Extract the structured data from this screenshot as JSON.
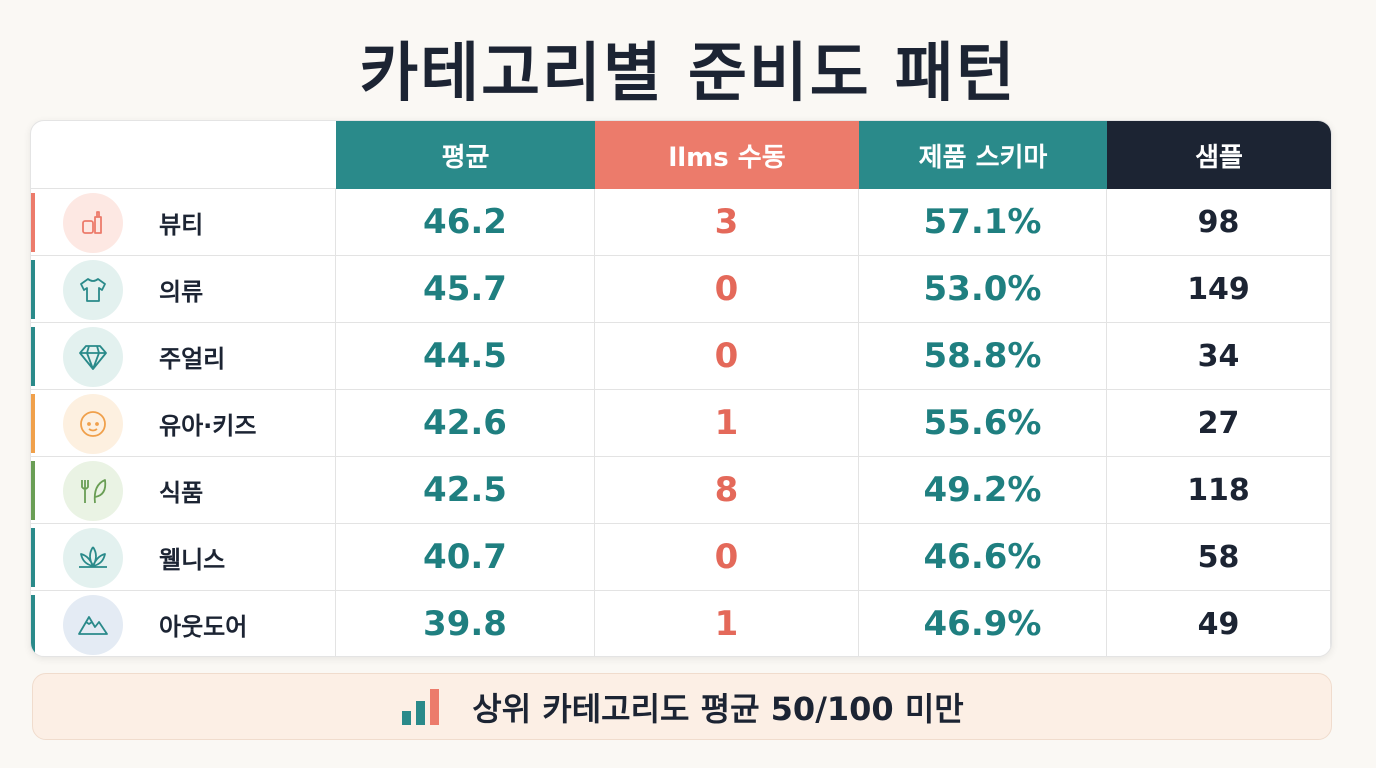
{
  "title": "카테고리별 준비도 패턴",
  "table": {
    "header": [
      "평균",
      "llms 수동",
      "제품 스키마",
      "샘플"
    ],
    "rows": [
      [
        "뷰티",
        "46.2",
        "3",
        "57.1%",
        "98"
      ],
      [
        "의류",
        "45.7",
        "0",
        "53.0%",
        "149"
      ],
      [
        "주얼리",
        "44.5",
        "0",
        "58.8%",
        "34"
      ],
      [
        "유아·키즈",
        "42.6",
        "1",
        "55.6%",
        "27"
      ],
      [
        "식품",
        "42.5",
        "8",
        "49.2%",
        "118"
      ],
      [
        "웰니스",
        "40.7",
        "0",
        "46.6%",
        "58"
      ],
      [
        "아웃도어",
        "39.8",
        "1",
        "46.9%",
        "49"
      ]
    ]
  },
  "footer": {
    "text": "상위 카테고리도 평균 50/100 미만"
  }
}
